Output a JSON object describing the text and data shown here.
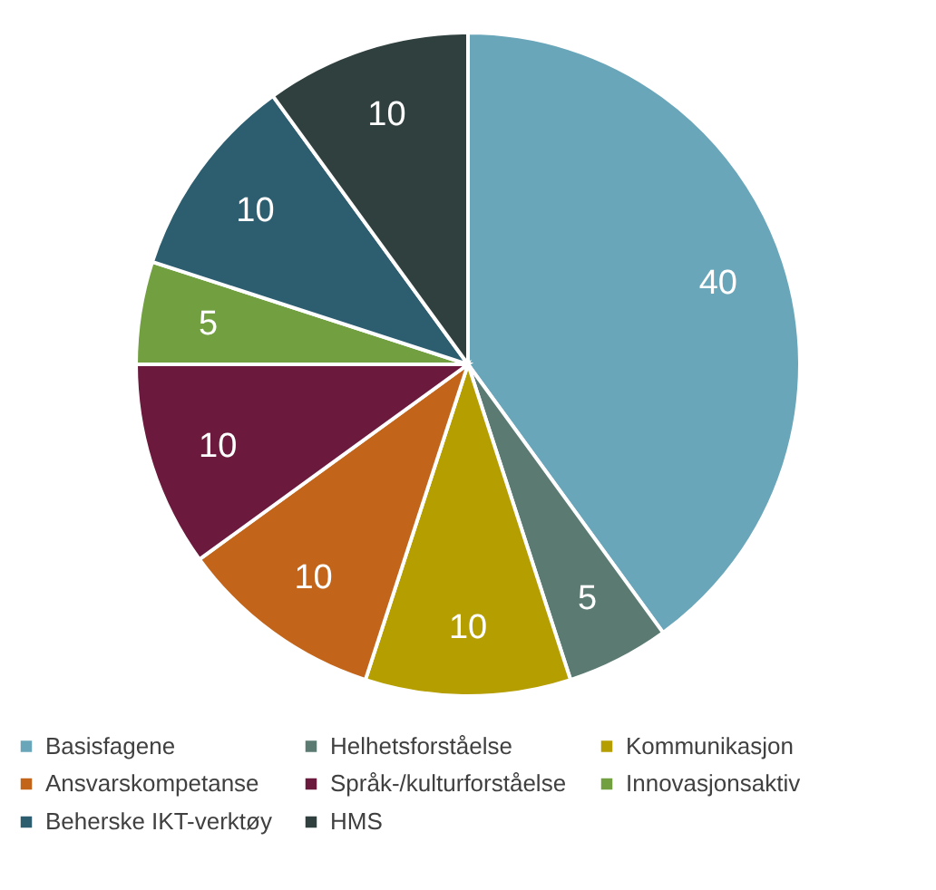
{
  "chart_data": {
    "type": "pie",
    "categories": [
      "Basisfagene",
      "Helhetsforståelse",
      "Kommunikasjon",
      "Ansvarskompetanse",
      "Språk-/kulturforståelse",
      "Innovasjonsaktiv",
      "Beherske IKT-verktøy",
      "HMS"
    ],
    "values": [
      40,
      5,
      10,
      10,
      10,
      5,
      10,
      10
    ],
    "colors": [
      "#6aa6ba",
      "#5a7a72",
      "#b59e00",
      "#c2651a",
      "#6b1a3e",
      "#72a040",
      "#2d5e70",
      "#2f403e"
    ],
    "data_labels": true,
    "legend": "bottom"
  }
}
